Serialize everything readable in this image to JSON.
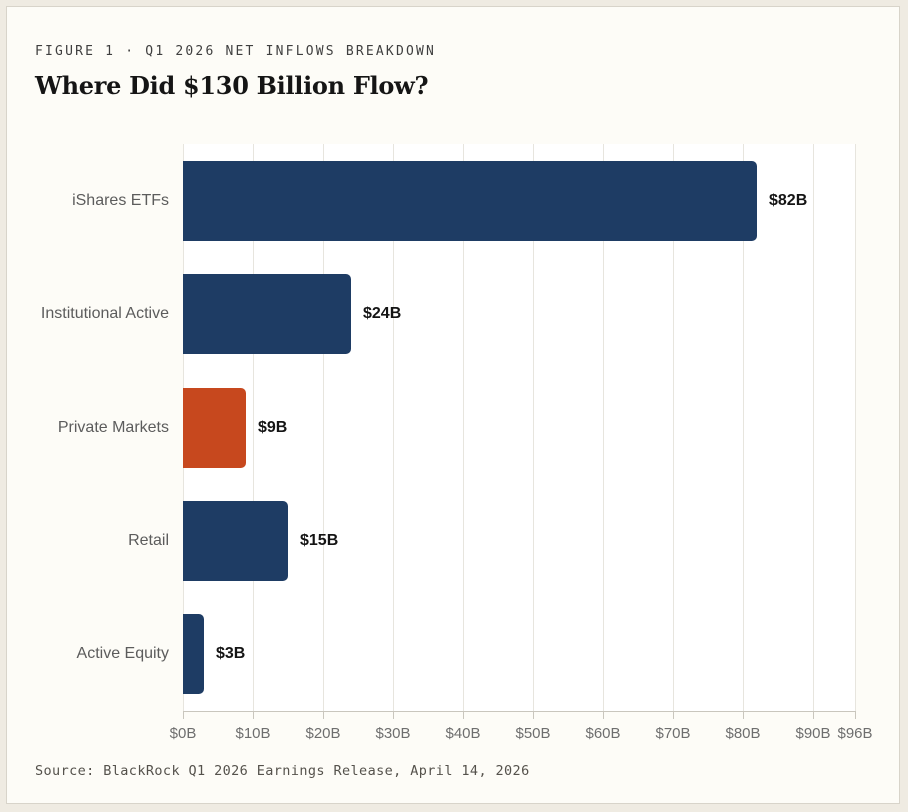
{
  "header": {
    "figure_label": "FIGURE 1 · Q1 2026 NET INFLOWS BREAKDOWN",
    "title": "Where Did $130 Billion Flow?"
  },
  "chart_data": {
    "type": "bar",
    "orientation": "horizontal",
    "title": "Where Did $130 Billion Flow?",
    "categories": [
      "iShares ETFs",
      "Institutional Active",
      "Private Markets",
      "Retail",
      "Active Equity"
    ],
    "values": [
      82,
      24,
      9,
      15,
      3
    ],
    "value_labels": [
      "$82B",
      "$24B",
      "$9B",
      "$15B",
      "$3B"
    ],
    "bar_colors": [
      "#1e3c64",
      "#1e3c64",
      "#c7481e",
      "#1e3c64",
      "#1e3c64"
    ],
    "x_ticks": [
      0,
      10,
      20,
      30,
      40,
      50,
      60,
      70,
      80,
      90,
      96
    ],
    "x_tick_labels": [
      "$0B",
      "$10B",
      "$20B",
      "$30B",
      "$40B",
      "$50B",
      "$60B",
      "$70B",
      "$80B",
      "$90B",
      "$96B"
    ],
    "xlim": [
      0,
      96
    ],
    "xlabel": "",
    "ylabel": "",
    "grid": true,
    "legend": false
  },
  "footer": {
    "source": "Source: BlackRock Q1 2026 Earnings Release, April 14, 2026"
  },
  "colors": {
    "navy": "#1e3c64",
    "orange": "#c7481e",
    "card_background": "#fdfcf7",
    "plot_background": "#ffffff",
    "gridline": "#e7e5de",
    "axis": "#c9c6bd"
  }
}
